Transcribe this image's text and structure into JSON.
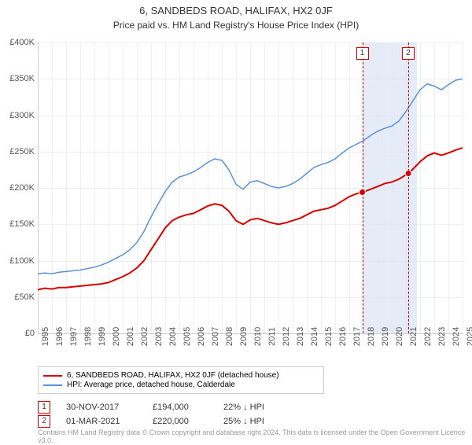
{
  "title": "6, SANDBEDS ROAD, HALIFAX, HX2 0JF",
  "subtitle": "Price paid vs. HM Land Registry's House Price Index (HPI)",
  "chart": {
    "type": "line",
    "x_years": [
      1995,
      1996,
      1997,
      1998,
      1999,
      2000,
      2001,
      2002,
      2003,
      2004,
      2005,
      2006,
      2007,
      2008,
      2009,
      2010,
      2011,
      2012,
      2013,
      2014,
      2015,
      2016,
      2017,
      2018,
      2019,
      2020,
      2021,
      2022,
      2023,
      2024,
      2025
    ],
    "xlim": [
      1995,
      2025
    ],
    "ylim": [
      0,
      400000
    ],
    "ytick_step": 50000,
    "ytick_labels": [
      "£0",
      "£50K",
      "£100K",
      "£150K",
      "£200K",
      "£250K",
      "£300K",
      "£350K",
      "£400K"
    ],
    "background_color": "#ffffff",
    "grid_color": "#eeeeee",
    "axis_color": "#cccccc",
    "label_fontsize": 11,
    "series": [
      {
        "name": "price_paid",
        "label": "6, SANDBEDS ROAD, HALIFAX, HX2 0JF (detached house)",
        "color": "#d40000",
        "line_width": 2,
        "x": [
          1995,
          1995.5,
          1996,
          1996.5,
          1997,
          1997.5,
          1998,
          1998.5,
          1999,
          1999.5,
          2000,
          2000.5,
          2001,
          2001.5,
          2002,
          2002.5,
          2003,
          2003.5,
          2004,
          2004.5,
          2005,
          2005.5,
          2006,
          2006.5,
          2007,
          2007.5,
          2008,
          2008.5,
          2009,
          2009.5,
          2010,
          2010.5,
          2011,
          2011.5,
          2012,
          2012.5,
          2013,
          2013.5,
          2014,
          2014.5,
          2015,
          2015.5,
          2016,
          2016.5,
          2017,
          2017.5,
          2017.92,
          2018.5,
          2019,
          2019.5,
          2020,
          2020.5,
          2021,
          2021.17,
          2021.5,
          2022,
          2022.5,
          2023,
          2023.5,
          2024,
          2024.5,
          2025
        ],
        "y": [
          60000,
          62000,
          61000,
          63000,
          63000,
          64000,
          65000,
          66000,
          67000,
          68000,
          70000,
          74000,
          78000,
          83000,
          90000,
          100000,
          115000,
          130000,
          145000,
          155000,
          160000,
          163000,
          165000,
          170000,
          175000,
          178000,
          176000,
          168000,
          155000,
          150000,
          156000,
          158000,
          155000,
          152000,
          150000,
          152000,
          155000,
          158000,
          163000,
          168000,
          170000,
          172000,
          176000,
          182000,
          188000,
          192000,
          194000,
          198000,
          202000,
          206000,
          208000,
          212000,
          218000,
          220000,
          226000,
          236000,
          244000,
          248000,
          245000,
          248000,
          252000,
          255000
        ]
      },
      {
        "name": "hpi",
        "label": "HPI: Average price, detached house, Calderdale",
        "color": "#5b8fd6",
        "line_width": 1.5,
        "x": [
          1995,
          1995.5,
          1996,
          1996.5,
          1997,
          1997.5,
          1998,
          1998.5,
          1999,
          1999.5,
          2000,
          2000.5,
          2001,
          2001.5,
          2002,
          2002.5,
          2003,
          2003.5,
          2004,
          2004.5,
          2005,
          2005.5,
          2006,
          2006.5,
          2007,
          2007.5,
          2008,
          2008.5,
          2009,
          2009.5,
          2010,
          2010.5,
          2011,
          2011.5,
          2012,
          2012.5,
          2013,
          2013.5,
          2014,
          2014.5,
          2015,
          2015.5,
          2016,
          2016.5,
          2017,
          2017.5,
          2018,
          2018.5,
          2019,
          2019.5,
          2020,
          2020.5,
          2021,
          2021.5,
          2022,
          2022.5,
          2023,
          2023.5,
          2024,
          2024.5,
          2025
        ],
        "y": [
          82000,
          83000,
          82000,
          84000,
          85000,
          86000,
          87000,
          89000,
          91000,
          94000,
          98000,
          103000,
          108000,
          115000,
          125000,
          140000,
          160000,
          178000,
          195000,
          208000,
          215000,
          218000,
          222000,
          228000,
          235000,
          240000,
          238000,
          225000,
          205000,
          198000,
          208000,
          210000,
          206000,
          202000,
          200000,
          202000,
          206000,
          212000,
          220000,
          228000,
          232000,
          235000,
          240000,
          248000,
          255000,
          260000,
          265000,
          272000,
          278000,
          282000,
          285000,
          292000,
          305000,
          320000,
          335000,
          343000,
          340000,
          335000,
          342000,
          348000,
          350000
        ]
      }
    ],
    "sales": [
      {
        "n": "1",
        "year": 2017.92,
        "date": "30-NOV-2017",
        "price": "£194,000",
        "vs_hpi": "22% ↓ HPI",
        "color": "#d40000",
        "y": 194000
      },
      {
        "n": "2",
        "year": 2021.17,
        "date": "01-MAR-2021",
        "price": "£220,000",
        "vs_hpi": "25% ↓ HPI",
        "color": "#d40000",
        "y": 220000
      }
    ],
    "sale_band_color": "#dbe4f3",
    "marker_radius": 4
  },
  "legend": {
    "border_color": "#cccccc"
  },
  "footnote": "Contains HM Land Registry data © Crown copyright and database right 2024. This data is licensed under the Open Government Licence v3.0."
}
